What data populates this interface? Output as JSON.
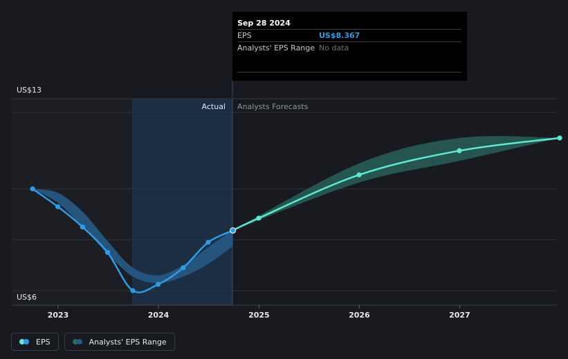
{
  "tooltip": {
    "date": "Sep 28 2024",
    "rows": [
      {
        "label": "EPS",
        "value": "US$8.367"
      },
      {
        "label": "Analysts' EPS Range",
        "value": "No data"
      }
    ]
  },
  "legend": {
    "items": [
      {
        "label": "EPS"
      },
      {
        "label": "Analysts' EPS Range"
      }
    ]
  },
  "colors": {
    "background": "#181a1f",
    "eps_actual": "#2f9ce6",
    "eps_forecast": "#5ee9d3",
    "range_actual": "#275a86",
    "range_forecast": "#2b6a62",
    "shade_actual": "#1b2e44"
  },
  "chart_data": {
    "type": "line",
    "ylabel_top": "US$13",
    "ylabel_bottom": "US$6",
    "section_labels": {
      "actual": "Actual",
      "forecast": "Analysts Forecasts"
    },
    "x_ticks": [
      "2023",
      "2024",
      "2025",
      "2026",
      "2027"
    ],
    "ylim": [
      6,
      13
    ],
    "series": [
      {
        "name": "EPS",
        "actual": [
          [
            "2022-09-30",
            10.0
          ],
          [
            "2022-12-31",
            9.3
          ],
          [
            "2023-03-31",
            8.5
          ],
          [
            "2023-06-30",
            7.5
          ],
          [
            "2023-09-30",
            6.0
          ],
          [
            "2023-12-31",
            6.25
          ],
          [
            "2024-03-31",
            6.9
          ],
          [
            "2024-06-30",
            7.9
          ],
          [
            "2024-09-28",
            8.367
          ]
        ],
        "forecast": [
          [
            "2024-09-28",
            8.367
          ],
          [
            "2024-12-31",
            8.85
          ],
          [
            "2025-12-31",
            10.55
          ],
          [
            "2026-12-31",
            11.5
          ],
          [
            "2027-12-31",
            12.0
          ]
        ]
      }
    ],
    "range": {
      "name": "Analysts' EPS Range",
      "actual": [
        [
          "2022-09-30",
          10.0,
          10.0
        ],
        [
          "2022-12-31",
          9.85,
          9.45
        ],
        [
          "2023-03-31",
          9.1,
          8.5
        ],
        [
          "2023-06-30",
          7.95,
          7.45
        ],
        [
          "2023-09-30",
          6.9,
          6.55
        ],
        [
          "2023-12-31",
          6.6,
          6.3
        ],
        [
          "2024-03-31",
          7.0,
          6.55
        ],
        [
          "2024-06-30",
          7.7,
          7.05
        ],
        [
          "2024-09-28",
          8.4,
          7.75
        ]
      ],
      "forecast": [
        [
          "2024-09-28",
          8.367,
          8.367
        ],
        [
          "2025-12-31",
          11.0,
          10.25
        ],
        [
          "2026-12-31",
          12.0,
          11.1
        ],
        [
          "2027-12-31",
          12.0,
          12.0
        ]
      ]
    },
    "current_date": "2024-09-28"
  }
}
